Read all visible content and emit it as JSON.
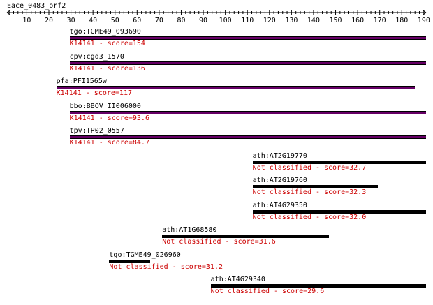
{
  "query": {
    "name": "Eace_0483_orf2",
    "length": 191,
    "ticks": [
      10,
      20,
      30,
      40,
      50,
      60,
      70,
      80,
      90,
      100,
      110,
      120,
      130,
      140,
      150,
      160,
      170,
      180,
      190
    ]
  },
  "colors": {
    "orthologBar": "#660066",
    "otherBar": "#000000",
    "scoreText": "#cc0000",
    "text": "#000000"
  },
  "hits": [
    {
      "name": "tgo:TGME49_093690",
      "label": "K14141 - score=154",
      "start": 30,
      "end": 191,
      "kind": "ortholog"
    },
    {
      "name": "cpv:cgd3_1570",
      "label": "K14141 - score=136",
      "start": 30,
      "end": 191,
      "kind": "ortholog"
    },
    {
      "name": "pfa:PFI1565w",
      "label": "K14141 - score=117",
      "start": 24,
      "end": 186,
      "kind": "ortholog"
    },
    {
      "name": "bbo:BBOV_II006000",
      "label": "K14141 - score=93.6",
      "start": 30,
      "end": 191,
      "kind": "ortholog"
    },
    {
      "name": "tpv:TP02_0557",
      "label": "K14141 - score=84.7",
      "start": 30,
      "end": 191,
      "kind": "ortholog"
    },
    {
      "name": "ath:AT2G19770",
      "label": "Not classified - score=32.7",
      "start": 113,
      "end": 191,
      "kind": "other"
    },
    {
      "name": "ath:AT2G19760",
      "label": "Not classified - score=32.3",
      "start": 113,
      "end": 169,
      "kind": "other"
    },
    {
      "name": "ath:AT4G29350",
      "label": "Not classified - score=32.0",
      "start": 113,
      "end": 191,
      "kind": "other"
    },
    {
      "name": "ath:AT1G68580",
      "label": "Not classified - score=31.6",
      "start": 72,
      "end": 147,
      "kind": "other"
    },
    {
      "name": "tgo:TGME49_026960",
      "label": "Not classified - score=31.2",
      "start": 48,
      "end": 66,
      "kind": "other"
    },
    {
      "name": "ath:AT4G29340",
      "label": "Not classified - score=29.6",
      "start": 94,
      "end": 191,
      "kind": "other"
    }
  ]
}
